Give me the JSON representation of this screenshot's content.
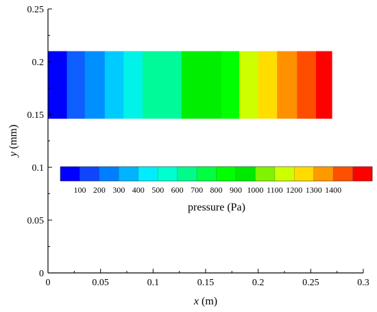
{
  "chart_data": {
    "type": "heatmap",
    "title": "",
    "xlabel": "x (m)",
    "ylabel": "y (mm)",
    "xlabel_var": "x",
    "xlabel_unit": "(m)",
    "ylabel_var": "y",
    "ylabel_unit": "(mm)",
    "xlim": [
      0,
      0.3
    ],
    "ylim": [
      0,
      0.25
    ],
    "x_ticks": [
      "0",
      "0.05",
      "0.1",
      "0.15",
      "0.2",
      "0.25",
      "0.3"
    ],
    "y_ticks": [
      "0",
      "0.05",
      "0.1",
      "0.15",
      "0.2",
      "0.25"
    ],
    "grid": false,
    "field": {
      "x_range": [
        0,
        0.27
      ],
      "y_range": [
        0.146,
        0.21
      ],
      "x_bounds": [
        0,
        0.018,
        0.035,
        0.054,
        0.072,
        0.09,
        0.127,
        0.165,
        0.182,
        0.2,
        0.218,
        0.237,
        0.255,
        0.27
      ],
      "band_colors": [
        "#0000ff",
        "#0f5eff",
        "#008fff",
        "#00cbff",
        "#00f2e9",
        "#00fa9a",
        "#00ee00",
        "#00ff00",
        "#ccff00",
        "#ffdd00",
        "#ff9100",
        "#ff4d00",
        "#ff0000"
      ]
    },
    "colorbar": {
      "title": "pressure (Pa)",
      "position": "inside plot, horizontal, around y=0.1",
      "colors": [
        "#0000ff",
        "#0f45ff",
        "#007eff",
        "#00b4ff",
        "#00edff",
        "#00ffd0",
        "#00fb8a",
        "#00ff40",
        "#00ff00",
        "#00ea00",
        "#7ff300",
        "#ccff00",
        "#ffdb00",
        "#ff9900",
        "#ff4f00",
        "#ff0000"
      ],
      "tick_labels": [
        "100",
        "200",
        "300",
        "400",
        "500",
        "600",
        "700",
        "800",
        "900",
        "1000",
        "1100",
        "1200",
        "1300",
        "1400"
      ]
    }
  }
}
